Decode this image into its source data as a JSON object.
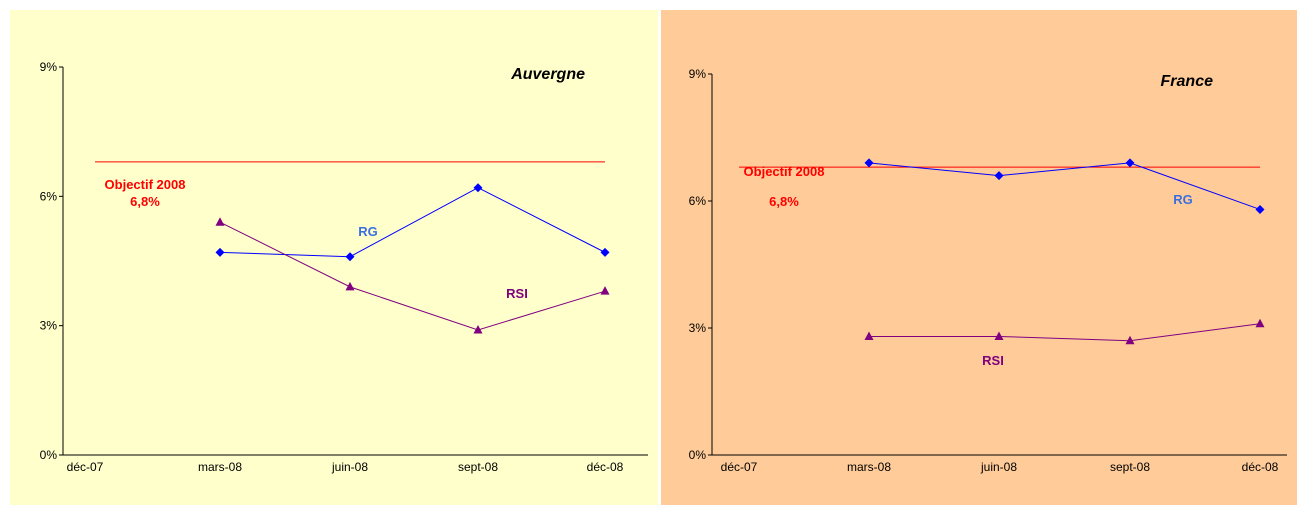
{
  "colors": {
    "rg": "#0000ff",
    "rsi": "#800080",
    "objective": "#ff0000",
    "objective_label": "#ff0000",
    "rg_label": "#3b6fe0",
    "rsi_label": "#800080"
  },
  "chart_data": [
    {
      "type": "line",
      "title": "Auvergne",
      "background": "#ffffcc",
      "categories": [
        "déc-07",
        "mars-08",
        "juin-08",
        "sept-08",
        "déc-08"
      ],
      "y_ticks": [
        "0%",
        "3%",
        "6%",
        "9%"
      ],
      "ylim": [
        0,
        9
      ],
      "grid": false,
      "series": [
        {
          "name": "RG",
          "marker": "diamond",
          "values": [
            null,
            4.7,
            4.6,
            6.2,
            4.7
          ]
        },
        {
          "name": "RSI",
          "marker": "triangle",
          "values": [
            null,
            5.4,
            3.9,
            2.9,
            3.8
          ]
        }
      ],
      "objective": {
        "value": 6.8,
        "label_line1": "Objectif 2008",
        "label_line2": "6,8%"
      }
    },
    {
      "type": "line",
      "title": "France",
      "background": "#ffcc99",
      "categories": [
        "déc-07",
        "mars-08",
        "juin-08",
        "sept-08",
        "déc-08"
      ],
      "y_ticks": [
        "0%",
        "3%",
        "6%",
        "9%"
      ],
      "ylim": [
        0,
        9
      ],
      "grid": false,
      "series": [
        {
          "name": "RG",
          "marker": "diamond",
          "values": [
            null,
            6.9,
            6.6,
            6.9,
            5.8
          ]
        },
        {
          "name": "RSI",
          "marker": "triangle",
          "values": [
            null,
            2.8,
            2.8,
            2.7,
            3.1
          ]
        }
      ],
      "objective": {
        "value": 6.8,
        "label_line1": "Objectif 2008",
        "label_line2": "6,8%"
      }
    }
  ]
}
